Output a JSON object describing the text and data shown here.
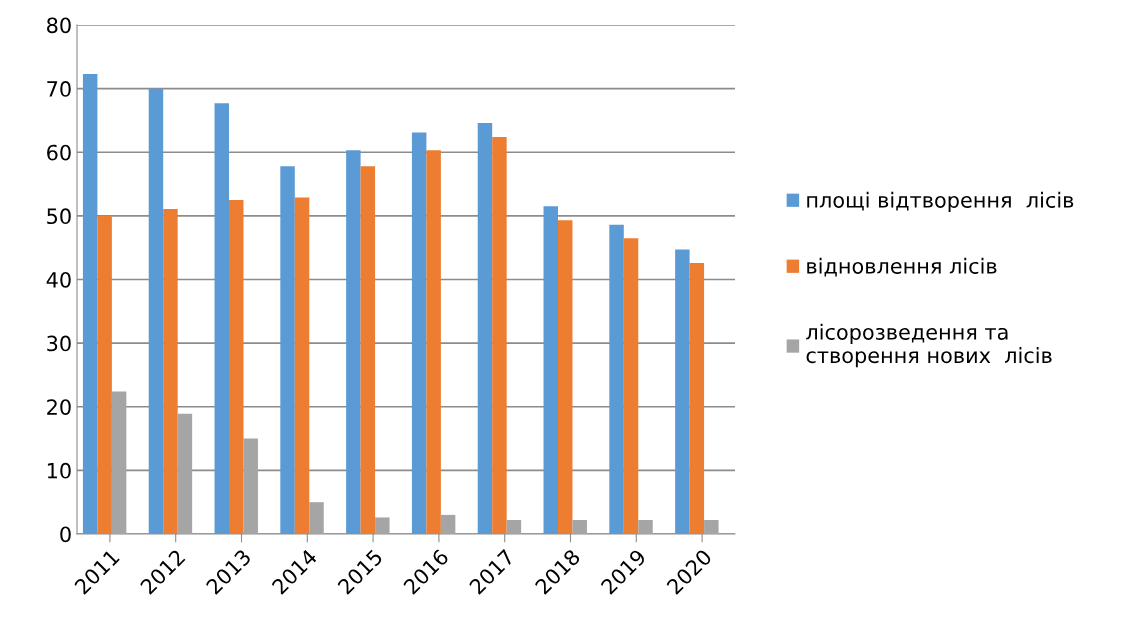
{
  "chart_data": {
    "type": "bar",
    "categories": [
      "2011",
      "2012",
      "2013",
      "2014",
      "2015",
      "2016",
      "2017",
      "2018",
      "2019",
      "2020"
    ],
    "series": [
      {
        "name": "площі відтворення  лісів",
        "color": "#5b9bd5",
        "values": [
          72.3,
          70.0,
          67.7,
          57.8,
          60.3,
          63.1,
          64.6,
          51.5,
          48.6,
          44.7
        ]
      },
      {
        "name": "відновлення лісів",
        "color": "#ed7d31",
        "values": [
          50.0,
          51.1,
          52.5,
          52.9,
          57.8,
          60.3,
          62.4,
          49.3,
          46.5,
          42.6
        ]
      },
      {
        "name": "лісорозведення та\nстворення нових  лісів",
        "color": "#a5a5a5",
        "values": [
          22.4,
          18.9,
          15.0,
          5.0,
          2.6,
          3.0,
          2.2,
          2.2,
          2.2,
          2.2
        ]
      }
    ],
    "ylim": [
      0,
      80
    ],
    "yticks": [
      0,
      10,
      20,
      30,
      40,
      50,
      60,
      70,
      80
    ],
    "grid": "y",
    "legend": "right"
  }
}
